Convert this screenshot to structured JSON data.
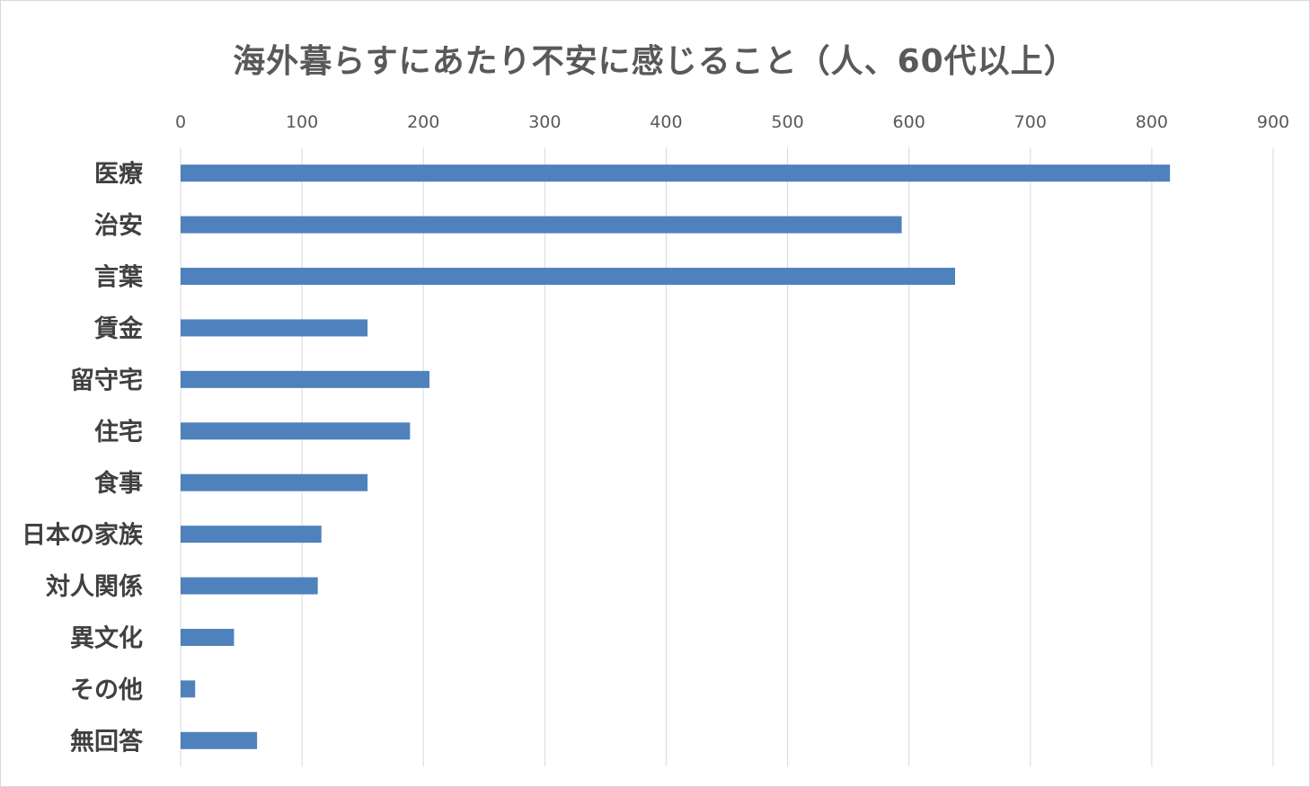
{
  "chart_data": {
    "type": "bar",
    "orientation": "horizontal",
    "title": "海外暮らすにあたり不安に感じること（人、60代以上）",
    "categories": [
      "医療",
      "治安",
      "言葉",
      "賃金",
      "留守宅",
      "住宅",
      "食事",
      "日本の家族",
      "対人関係",
      "異文化",
      "その他",
      "無回答"
    ],
    "values": [
      815,
      594,
      638,
      154,
      205,
      189,
      154,
      116,
      113,
      44,
      12,
      63
    ],
    "xlim": [
      0,
      900
    ],
    "xticks": [
      0,
      100,
      200,
      300,
      400,
      500,
      600,
      700,
      800,
      900
    ],
    "x_axis_position": "top",
    "grid": true,
    "legend": "none",
    "bar_color": "#4f81bd",
    "grid_color": "#d9d9d9"
  }
}
